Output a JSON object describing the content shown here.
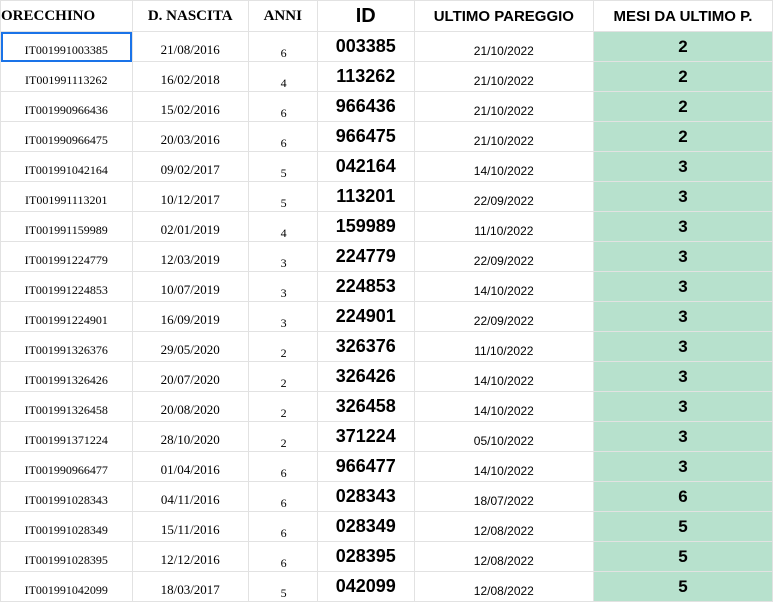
{
  "headers": {
    "orecchino": "ORECCHINO",
    "nascita": "D. NASCITA",
    "anni": "ANNI",
    "id": "ID",
    "ultimo": "ULTIMO PAREGGIO",
    "mesi": "MESI DA ULTIMO P."
  },
  "colors": {
    "highlight_column": "#b7e1cd",
    "selection": "#1a73e8"
  },
  "rows": [
    {
      "orecchino": "IT001991003385",
      "nascita": "21/08/2016",
      "anni": "6",
      "id": "003385",
      "ultimo": "21/10/2022",
      "mesi": "2"
    },
    {
      "orecchino": "IT001991113262",
      "nascita": "16/02/2018",
      "anni": "4",
      "id": "113262",
      "ultimo": "21/10/2022",
      "mesi": "2"
    },
    {
      "orecchino": "IT001990966436",
      "nascita": "15/02/2016",
      "anni": "6",
      "id": "966436",
      "ultimo": "21/10/2022",
      "mesi": "2"
    },
    {
      "orecchino": "IT001990966475",
      "nascita": "20/03/2016",
      "anni": "6",
      "id": "966475",
      "ultimo": "21/10/2022",
      "mesi": "2"
    },
    {
      "orecchino": "IT001991042164",
      "nascita": "09/02/2017",
      "anni": "5",
      "id": "042164",
      "ultimo": "14/10/2022",
      "mesi": "3"
    },
    {
      "orecchino": "IT001991113201",
      "nascita": "10/12/2017",
      "anni": "5",
      "id": "113201",
      "ultimo": "22/09/2022",
      "mesi": "3"
    },
    {
      "orecchino": "IT001991159989",
      "nascita": "02/01/2019",
      "anni": "4",
      "id": "159989",
      "ultimo": "11/10/2022",
      "mesi": "3"
    },
    {
      "orecchino": "IT001991224779",
      "nascita": "12/03/2019",
      "anni": "3",
      "id": "224779",
      "ultimo": "22/09/2022",
      "mesi": "3"
    },
    {
      "orecchino": "IT001991224853",
      "nascita": "10/07/2019",
      "anni": "3",
      "id": "224853",
      "ultimo": "14/10/2022",
      "mesi": "3"
    },
    {
      "orecchino": "IT001991224901",
      "nascita": "16/09/2019",
      "anni": "3",
      "id": "224901",
      "ultimo": "22/09/2022",
      "mesi": "3"
    },
    {
      "orecchino": "IT001991326376",
      "nascita": "29/05/2020",
      "anni": "2",
      "id": "326376",
      "ultimo": "11/10/2022",
      "mesi": "3"
    },
    {
      "orecchino": "IT001991326426",
      "nascita": "20/07/2020",
      "anni": "2",
      "id": "326426",
      "ultimo": "14/10/2022",
      "mesi": "3"
    },
    {
      "orecchino": "IT001991326458",
      "nascita": "20/08/2020",
      "anni": "2",
      "id": "326458",
      "ultimo": "14/10/2022",
      "mesi": "3"
    },
    {
      "orecchino": "IT001991371224",
      "nascita": "28/10/2020",
      "anni": "2",
      "id": "371224",
      "ultimo": "05/10/2022",
      "mesi": "3"
    },
    {
      "orecchino": "IT001990966477",
      "nascita": "01/04/2016",
      "anni": "6",
      "id": "966477",
      "ultimo": "14/10/2022",
      "mesi": "3"
    },
    {
      "orecchino": "IT001991028343",
      "nascita": "04/11/2016",
      "anni": "6",
      "id": "028343",
      "ultimo": "18/07/2022",
      "mesi": "6"
    },
    {
      "orecchino": "IT001991028349",
      "nascita": "15/11/2016",
      "anni": "6",
      "id": "028349",
      "ultimo": "12/08/2022",
      "mesi": "5"
    },
    {
      "orecchino": "IT001991028395",
      "nascita": "12/12/2016",
      "anni": "6",
      "id": "028395",
      "ultimo": "12/08/2022",
      "mesi": "5"
    },
    {
      "orecchino": "IT001991042099",
      "nascita": "18/03/2017",
      "anni": "5",
      "id": "042099",
      "ultimo": "12/08/2022",
      "mesi": "5"
    }
  ]
}
